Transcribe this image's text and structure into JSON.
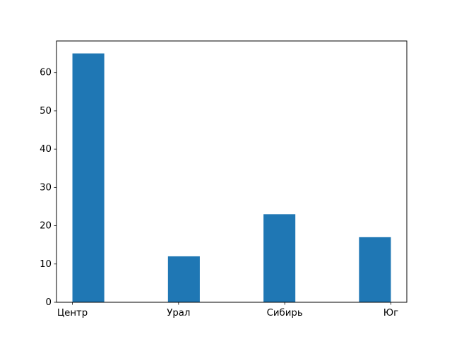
{
  "chart_data": {
    "type": "bar",
    "title": "",
    "xlabel": "",
    "ylabel": "",
    "categories": [
      "Центр",
      "Урал",
      "Сибирь",
      "Юг"
    ],
    "category_positions": [
      0,
      1,
      2,
      3
    ],
    "bins": [
      {
        "left": 0.0,
        "right": 0.3,
        "value": 65
      },
      {
        "left": 0.9,
        "right": 1.2,
        "value": 12
      },
      {
        "left": 1.8,
        "right": 2.1,
        "value": 23
      },
      {
        "left": 2.7,
        "right": 3.0,
        "value": 17
      }
    ],
    "values": [
      65,
      12,
      23,
      17
    ],
    "xlim": [
      -0.15,
      3.15
    ],
    "ylim": [
      0,
      68.25
    ],
    "yticks": [
      0,
      10,
      20,
      30,
      40,
      50,
      60
    ],
    "grid": false,
    "legend": "none",
    "bar_color": "#1f77b4"
  }
}
